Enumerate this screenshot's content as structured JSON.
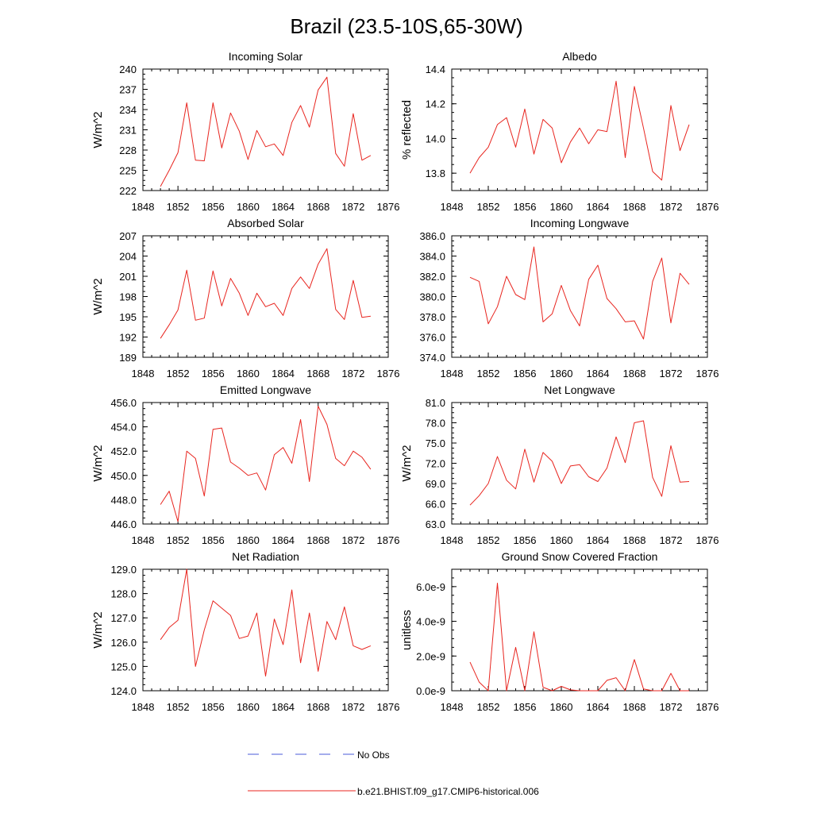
{
  "figure": {
    "title": "Brazil (23.5-10S,65-30W)",
    "legend": [
      {
        "label": "No Obs",
        "color": "#4a5bd8",
        "style": "dashed"
      },
      {
        "label": "b.e21.BHIST.f09_g17.CMIP6-historical.006",
        "color": "#e8251f",
        "style": "solid"
      }
    ]
  },
  "chart_data": [
    {
      "type": "line",
      "title": "Incoming Solar",
      "ylabel": "W/m^2",
      "xlim": [
        1848,
        1876
      ],
      "ylim": [
        222,
        240
      ],
      "xticks": [
        1848,
        1852,
        1856,
        1860,
        1864,
        1868,
        1872,
        1876
      ],
      "yticks": [
        "222",
        "225",
        "228",
        "231",
        "234",
        "237",
        "240"
      ],
      "x": [
        1850,
        1851,
        1852,
        1853,
        1854,
        1855,
        1856,
        1857,
        1858,
        1859,
        1860,
        1861,
        1862,
        1863,
        1864,
        1865,
        1866,
        1867,
        1868,
        1869,
        1870,
        1871,
        1872,
        1873,
        1874
      ],
      "series": [
        {
          "name": "b.e21.BHIST.f09_g17.CMIP6-historical.006",
          "color": "#e8251f",
          "values": [
            222.6,
            225.0,
            227.6,
            235.0,
            226.5,
            226.4,
            235.0,
            228.3,
            233.5,
            230.8,
            226.6,
            230.9,
            228.5,
            228.9,
            227.2,
            232.1,
            234.6,
            231.4,
            236.9,
            238.8,
            227.5,
            225.6,
            233.4,
            226.5,
            227.2
          ]
        }
      ]
    },
    {
      "type": "line",
      "title": "Albedo",
      "ylabel": "% reflected",
      "xlim": [
        1848,
        1876
      ],
      "ylim": [
        13.7,
        14.4
      ],
      "xticks": [
        1848,
        1852,
        1856,
        1860,
        1864,
        1868,
        1872,
        1876
      ],
      "yticks": [
        "13.8",
        "14.0",
        "14.2",
        "14.4"
      ],
      "x": [
        1850,
        1851,
        1852,
        1853,
        1854,
        1855,
        1856,
        1857,
        1858,
        1859,
        1860,
        1861,
        1862,
        1863,
        1864,
        1865,
        1866,
        1867,
        1868,
        1869,
        1870,
        1871,
        1872,
        1873,
        1874
      ],
      "series": [
        {
          "name": "b.e21.BHIST.f09_g17.CMIP6-historical.006",
          "color": "#e8251f",
          "values": [
            13.8,
            13.89,
            13.95,
            14.08,
            14.12,
            13.95,
            14.17,
            13.91,
            14.11,
            14.06,
            13.86,
            13.98,
            14.06,
            13.97,
            14.05,
            14.04,
            14.33,
            13.89,
            14.3,
            14.06,
            13.81,
            13.76,
            14.19,
            13.93,
            14.08
          ]
        }
      ]
    },
    {
      "type": "line",
      "title": "Absorbed Solar",
      "ylabel": "W/m^2",
      "xlim": [
        1848,
        1876
      ],
      "ylim": [
        189,
        207
      ],
      "xticks": [
        1848,
        1852,
        1856,
        1860,
        1864,
        1868,
        1872,
        1876
      ],
      "yticks": [
        "189",
        "192",
        "195",
        "198",
        "201",
        "204",
        "207"
      ],
      "x": [
        1850,
        1851,
        1852,
        1853,
        1854,
        1855,
        1856,
        1857,
        1858,
        1859,
        1860,
        1861,
        1862,
        1863,
        1864,
        1865,
        1866,
        1867,
        1868,
        1869,
        1870,
        1871,
        1872,
        1873,
        1874
      ],
      "series": [
        {
          "name": "b.e21.BHIST.f09_g17.CMIP6-historical.006",
          "color": "#e8251f",
          "values": [
            191.8,
            193.8,
            196.0,
            201.9,
            194.5,
            194.8,
            201.8,
            196.6,
            200.7,
            198.5,
            195.2,
            198.5,
            196.5,
            197.0,
            195.2,
            199.2,
            200.9,
            199.2,
            202.8,
            205.1,
            196.1,
            194.6,
            200.4,
            194.9,
            195.1
          ]
        }
      ]
    },
    {
      "type": "line",
      "title": "Incoming Longwave",
      "ylabel": "",
      "xlim": [
        1848,
        1876
      ],
      "ylim": [
        374,
        386
      ],
      "xticks": [
        1848,
        1852,
        1856,
        1860,
        1864,
        1868,
        1872,
        1876
      ],
      "yticks": [
        "374.0",
        "376.0",
        "378.0",
        "380.0",
        "382.0",
        "384.0",
        "386.0"
      ],
      "x": [
        1850,
        1851,
        1852,
        1853,
        1854,
        1855,
        1856,
        1857,
        1858,
        1859,
        1860,
        1861,
        1862,
        1863,
        1864,
        1865,
        1866,
        1867,
        1868,
        1869,
        1870,
        1871,
        1872,
        1873,
        1874
      ],
      "series": [
        {
          "name": "b.e21.BHIST.f09_g17.CMIP6-historical.006",
          "color": "#e8251f",
          "values": [
            381.9,
            381.5,
            377.3,
            379.0,
            382.0,
            380.2,
            379.7,
            384.9,
            377.5,
            378.3,
            381.1,
            378.6,
            377.1,
            381.7,
            383.1,
            379.8,
            378.8,
            377.5,
            377.6,
            375.8,
            381.5,
            383.8,
            377.4,
            382.3,
            381.2
          ]
        }
      ]
    },
    {
      "type": "line",
      "title": "Emitted Longwave",
      "ylabel": "W/m^2",
      "xlim": [
        1848,
        1876
      ],
      "ylim": [
        446,
        456
      ],
      "xticks": [
        1848,
        1852,
        1856,
        1860,
        1864,
        1868,
        1872,
        1876
      ],
      "yticks": [
        "446.0",
        "448.0",
        "450.0",
        "452.0",
        "454.0",
        "456.0"
      ],
      "x": [
        1850,
        1851,
        1852,
        1853,
        1854,
        1855,
        1856,
        1857,
        1858,
        1859,
        1860,
        1861,
        1862,
        1863,
        1864,
        1865,
        1866,
        1867,
        1868,
        1869,
        1870,
        1871,
        1872,
        1873,
        1874
      ],
      "series": [
        {
          "name": "b.e21.BHIST.f09_g17.CMIP6-historical.006",
          "color": "#e8251f",
          "values": [
            447.6,
            448.7,
            446.2,
            452.0,
            451.4,
            448.3,
            453.8,
            453.9,
            451.1,
            450.6,
            450.0,
            450.2,
            448.8,
            451.7,
            452.3,
            451.0,
            454.6,
            449.5,
            455.7,
            454.2,
            451.4,
            450.8,
            452.0,
            451.5,
            450.5
          ]
        }
      ]
    },
    {
      "type": "line",
      "title": "Net Longwave",
      "ylabel": "W/m^2",
      "xlim": [
        1848,
        1876
      ],
      "ylim": [
        63,
        81
      ],
      "xticks": [
        1848,
        1852,
        1856,
        1860,
        1864,
        1868,
        1872,
        1876
      ],
      "yticks": [
        "63.0",
        "66.0",
        "69.0",
        "72.0",
        "75.0",
        "78.0",
        "81.0"
      ],
      "x": [
        1850,
        1851,
        1852,
        1853,
        1854,
        1855,
        1856,
        1857,
        1858,
        1859,
        1860,
        1861,
        1862,
        1863,
        1864,
        1865,
        1866,
        1867,
        1868,
        1869,
        1870,
        1871,
        1872,
        1873,
        1874
      ],
      "series": [
        {
          "name": "b.e21.BHIST.f09_g17.CMIP6-historical.006",
          "color": "#e8251f",
          "values": [
            65.8,
            67.2,
            69.0,
            73.0,
            69.5,
            68.2,
            74.1,
            69.2,
            73.6,
            72.3,
            69.0,
            71.6,
            71.8,
            70.0,
            69.3,
            71.3,
            75.9,
            72.1,
            78.0,
            78.3,
            69.9,
            67.1,
            74.6,
            69.2,
            69.3
          ]
        }
      ]
    },
    {
      "type": "line",
      "title": "Net Radiation",
      "ylabel": "W/m^2",
      "xlim": [
        1848,
        1876
      ],
      "ylim": [
        124,
        129
      ],
      "xticks": [
        1848,
        1852,
        1856,
        1860,
        1864,
        1868,
        1872,
        1876
      ],
      "yticks": [
        "124.0",
        "125.0",
        "126.0",
        "127.0",
        "128.0",
        "129.0"
      ],
      "x": [
        1850,
        1851,
        1852,
        1853,
        1854,
        1855,
        1856,
        1857,
        1858,
        1859,
        1860,
        1861,
        1862,
        1863,
        1864,
        1865,
        1866,
        1867,
        1868,
        1869,
        1870,
        1871,
        1872,
        1873,
        1874
      ],
      "series": [
        {
          "name": "b.e21.BHIST.f09_g17.CMIP6-historical.006",
          "color": "#e8251f",
          "values": [
            126.1,
            126.6,
            126.9,
            129.0,
            125.0,
            126.5,
            127.7,
            127.4,
            127.1,
            126.15,
            126.25,
            127.2,
            124.6,
            126.95,
            125.9,
            128.15,
            125.15,
            127.2,
            124.8,
            126.85,
            126.1,
            127.45,
            125.85,
            125.7,
            125.85
          ]
        }
      ]
    },
    {
      "type": "line",
      "title": "Ground Snow Covered Fraction",
      "ylabel": "unitless",
      "xlim": [
        1848,
        1876
      ],
      "ylim": [
        0,
        7e-09
      ],
      "xticks": [
        1848,
        1852,
        1856,
        1860,
        1864,
        1868,
        1872,
        1876
      ],
      "yticks": [
        "0.0e-9",
        "2.0e-9",
        "4.0e-9",
        "6.0e-9"
      ],
      "x": [
        1850,
        1851,
        1852,
        1853,
        1854,
        1855,
        1856,
        1857,
        1858,
        1859,
        1860,
        1861,
        1862,
        1863,
        1864,
        1865,
        1866,
        1867,
        1868,
        1869,
        1870,
        1871,
        1872,
        1873,
        1874
      ],
      "series": [
        {
          "name": "b.e21.BHIST.f09_g17.CMIP6-historical.006",
          "color": "#e8251f",
          "values": [
            1.65e-09,
            5e-10,
            0.0,
            6.2e-09,
            0.0,
            2.5e-09,
            0.0,
            3.4e-09,
            2e-10,
            0.0,
            2.5e-10,
            5e-11,
            0.0,
            0.0,
            0.0,
            6e-10,
            7.5e-10,
            0.0,
            1.8e-09,
            1e-10,
            0.0,
            0.0,
            1e-09,
            0.0,
            0.0
          ]
        }
      ]
    }
  ]
}
